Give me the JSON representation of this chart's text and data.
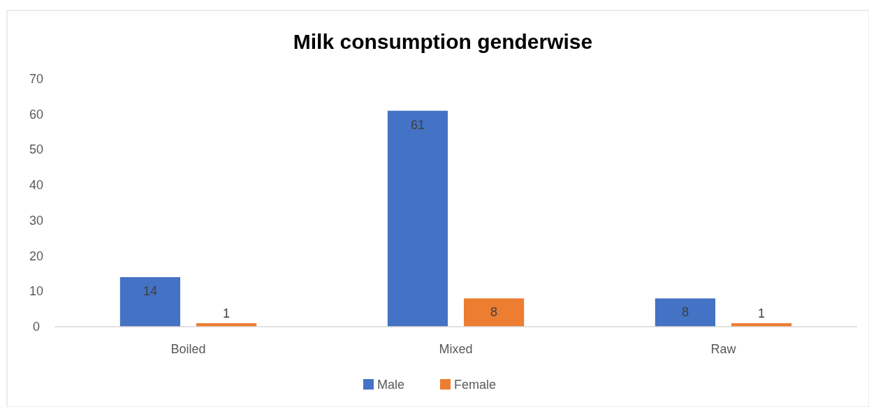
{
  "chart_data": {
    "type": "bar",
    "title": "Milk consumption genderwise",
    "categories": [
      "Boiled",
      "Mixed",
      "Raw"
    ],
    "series": [
      {
        "name": "Male",
        "color": "#4472c4",
        "values": [
          14,
          61,
          8
        ]
      },
      {
        "name": "Female",
        "color": "#ed7d31",
        "values": [
          1,
          8,
          1
        ]
      }
    ],
    "ylim": [
      0,
      70
    ],
    "yticks": [
      0,
      10,
      20,
      30,
      40,
      50,
      60,
      70
    ],
    "grid": false,
    "legend": "bottom",
    "data_labels": true
  }
}
